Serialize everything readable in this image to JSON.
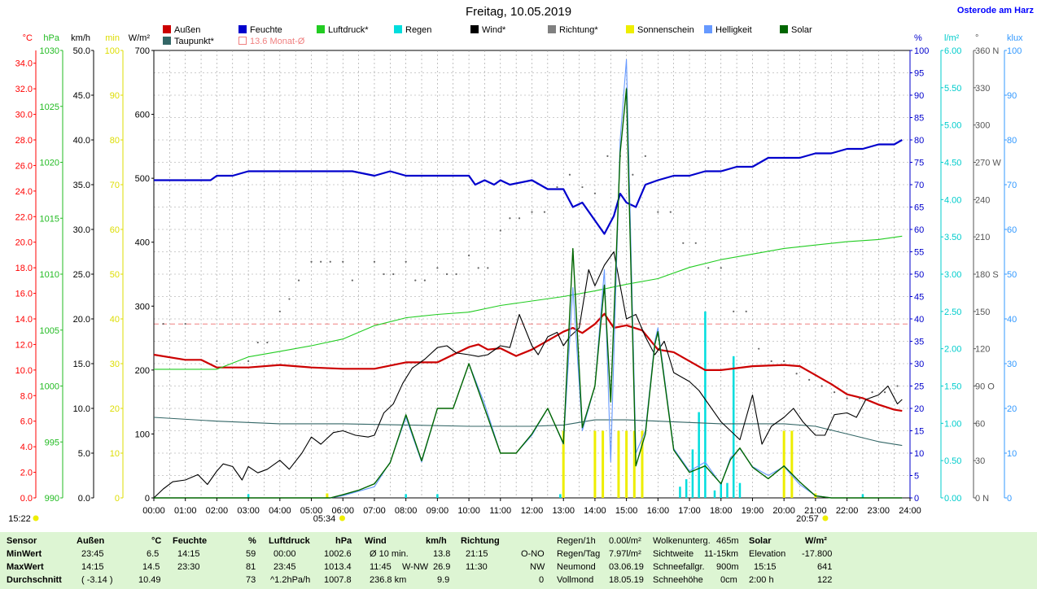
{
  "header": {
    "title": "Freitag, 10.05.2019",
    "site": "Osterode am Harz"
  },
  "legend": [
    {
      "label": "Außen",
      "color": "#cc0000"
    },
    {
      "label": "Feuchte",
      "color": "#0000cc"
    },
    {
      "label": "Luftdruck*",
      "color": "#22cc22"
    },
    {
      "label": "Regen",
      "color": "#00dddd"
    },
    {
      "label": "Wind*",
      "color": "#000000"
    },
    {
      "label": "Richtung*",
      "color": "#808080"
    },
    {
      "label": "Sonnenschein",
      "color": "#eeee00"
    },
    {
      "label": "Helligkeit",
      "color": "#6699ff"
    },
    {
      "label": "Solar",
      "color": "#006600"
    },
    {
      "label": "Taupunkt*",
      "color": "#336666"
    },
    {
      "label": "13.6 Monat-Ø",
      "color": "#f08080"
    }
  ],
  "axes": {
    "temp": {
      "unit": "°C",
      "color": "#ff0000",
      "ticks": [
        "0.0",
        "2.0",
        "4.0",
        "6.0",
        "8.0",
        "10.0",
        "12.0",
        "14.0",
        "16.0",
        "18.0",
        "20.0",
        "22.0",
        "24.0",
        "26.0",
        "28.0",
        "30.0",
        "32.0",
        "34.0"
      ]
    },
    "pressure": {
      "unit": "hPa",
      "color": "#22bb22",
      "ticks": [
        "990",
        "995",
        "1000",
        "1005",
        "1010",
        "1015",
        "1020",
        "1025",
        "1030"
      ]
    },
    "wind": {
      "unit": "km/h",
      "color": "#000000",
      "ticks": [
        "0.0",
        "5.0",
        "10.0",
        "15.0",
        "20.0",
        "25.0",
        "30.0",
        "35.0",
        "40.0",
        "45.0",
        "50.0"
      ]
    },
    "sunmin": {
      "unit": "min",
      "color": "#dddd00",
      "ticks": [
        "0",
        "10",
        "20",
        "30",
        "40",
        "50",
        "60",
        "70",
        "80",
        "90",
        "100"
      ]
    },
    "solar": {
      "unit": "W/m²",
      "color": "#000000",
      "ticks": [
        "0",
        "100",
        "200",
        "300",
        "400",
        "500",
        "600",
        "700"
      ]
    },
    "humidity": {
      "unit": "%",
      "color": "#0000cc",
      "ticks": [
        "0",
        "5",
        "10",
        "15",
        "20",
        "25",
        "30",
        "35",
        "40",
        "45",
        "50",
        "55",
        "60",
        "65",
        "70",
        "75",
        "80",
        "85",
        "90",
        "95",
        "100"
      ]
    },
    "rain": {
      "unit": "l/m²",
      "color": "#00cccc",
      "ticks": [
        "0.00",
        "0.50",
        "1.00",
        "1.50",
        "2.00",
        "2.50",
        "3.00",
        "3.50",
        "4.00",
        "4.50",
        "5.00",
        "5.50",
        "6.00"
      ]
    },
    "direction": {
      "unit": "°",
      "color": "#555555",
      "ticks": [
        "0 N",
        "30",
        "60",
        "90 O",
        "120",
        "150",
        "180 S",
        "210",
        "240",
        "270 W",
        "300",
        "330",
        "360 N"
      ]
    },
    "lux": {
      "unit": "klux",
      "color": "#3399ff",
      "ticks": [
        "0",
        "10",
        "20",
        "30",
        "40",
        "50",
        "60",
        "70",
        "80",
        "90",
        "100"
      ]
    },
    "time_ticks": [
      "00:00",
      "01:00",
      "02:00",
      "03:00",
      "04:00",
      "05:00",
      "06:00",
      "07:00",
      "08:00",
      "09:00",
      "10:00",
      "11:00",
      "12:00",
      "13:00",
      "14:00",
      "15:00",
      "16:00",
      "17:00",
      "18:00",
      "19:00",
      "20:00",
      "21:00",
      "22:00",
      "23:00",
      "24:00"
    ]
  },
  "sun_events": {
    "sunrise": "05:34",
    "sunset": "20:57",
    "left_time": "15:22"
  },
  "chart_data": {
    "type": "line",
    "xlim": [
      0,
      24
    ],
    "monthly_avg_temp": 13.6,
    "series": [
      {
        "name": "Außen",
        "axis": "temp",
        "color": "#cc0000",
        "x": [
          0,
          1,
          1.5,
          2,
          3,
          4,
          5,
          6,
          7,
          8,
          8.5,
          9,
          9.5,
          10,
          10.3,
          10.6,
          11,
          11.5,
          12,
          12.5,
          13,
          13.3,
          13.6,
          14,
          14.3,
          14.6,
          15,
          15.5,
          16,
          16.5,
          17,
          17.5,
          18,
          19,
          20,
          20.5,
          21,
          21.5,
          22,
          22.5,
          23,
          23.5,
          23.75
        ],
        "y": [
          11.2,
          10.8,
          10.8,
          10.2,
          10.2,
          10.4,
          10.2,
          10.1,
          10.1,
          10.6,
          10.6,
          10.6,
          11.2,
          11.8,
          12.0,
          11.6,
          11.7,
          11.1,
          11.6,
          12.3,
          13.0,
          13.3,
          12.9,
          13.6,
          14.4,
          13.3,
          13.5,
          13.1,
          11.6,
          11.4,
          10.7,
          10.0,
          10.0,
          10.3,
          10.4,
          10.3,
          9.6,
          8.9,
          8.1,
          7.8,
          7.3,
          6.9,
          6.8
        ]
      },
      {
        "name": "Taupunkt*",
        "axis": "temp",
        "color": "#336666",
        "x": [
          0,
          2,
          4,
          6,
          8,
          10,
          12,
          13,
          14,
          15,
          16,
          17,
          18,
          19,
          20,
          21,
          22,
          23,
          23.75
        ],
        "y": [
          6.3,
          6.0,
          5.8,
          5.8,
          5.7,
          5.6,
          5.6,
          5.7,
          6.1,
          6.1,
          6.0,
          5.9,
          5.8,
          5.8,
          5.8,
          5.6,
          5.0,
          4.4,
          4.1
        ]
      },
      {
        "name": "Feuchte",
        "axis": "humidity",
        "color": "#0000cc",
        "x": [
          0,
          1,
          1.8,
          2,
          2.5,
          3,
          4,
          5,
          6,
          6.3,
          7,
          7.5,
          8,
          9,
          10,
          10.2,
          10.5,
          10.8,
          11,
          11.3,
          12,
          12.5,
          13,
          13.3,
          13.6,
          14,
          14.3,
          14.6,
          14.8,
          15,
          15.3,
          15.6,
          16,
          16.5,
          17,
          17.5,
          18,
          18.5,
          19,
          19.5,
          20,
          20.5,
          21,
          21.5,
          22,
          22.5,
          23,
          23.5,
          23.75
        ],
        "y": [
          71,
          71,
          71,
          72,
          72,
          73,
          73,
          73,
          73,
          73,
          72,
          73,
          72,
          72,
          72,
          70,
          71,
          70,
          71,
          70,
          71,
          69,
          69,
          65,
          66,
          62,
          59,
          63,
          68,
          66,
          65,
          70,
          71,
          72,
          72,
          73,
          73,
          74,
          74,
          76,
          76,
          76,
          77,
          77,
          78,
          78,
          79,
          79,
          80
        ]
      },
      {
        "name": "Luftdruck*",
        "axis": "pressure",
        "color": "#22cc22",
        "x": [
          0,
          1,
          2,
          3,
          4,
          5,
          6,
          7,
          8,
          9,
          10,
          11,
          12,
          13,
          14,
          15,
          16,
          17,
          18,
          19,
          20,
          21,
          22,
          23,
          23.75
        ],
        "y": [
          1001.5,
          1001.5,
          1001.5,
          1002.6,
          1003.1,
          1003.6,
          1004.2,
          1005.4,
          1006.1,
          1006.4,
          1006.6,
          1007.2,
          1007.6,
          1008.0,
          1008.5,
          1009.1,
          1009.6,
          1010.6,
          1011.3,
          1011.8,
          1012.3,
          1012.6,
          1012.9,
          1013.1,
          1013.4
        ]
      },
      {
        "name": "Wind*",
        "axis": "wind",
        "color": "#000000",
        "x": [
          0,
          0.3,
          0.6,
          1,
          1.4,
          1.7,
          2,
          2.2,
          2.5,
          2.8,
          3,
          3.3,
          3.6,
          4,
          4.3,
          4.7,
          5,
          5.3,
          5.7,
          6,
          6.4,
          6.8,
          7,
          7.3,
          7.6,
          7.9,
          8.2,
          8.6,
          9,
          9.3,
          9.6,
          10,
          10.3,
          10.6,
          11,
          11.3,
          11.6,
          12,
          12.2,
          12.5,
          12.8,
          13,
          13.2,
          13.5,
          13.8,
          14,
          14.3,
          14.6,
          15,
          15.3,
          15.6,
          15.9,
          16.2,
          16.5,
          17,
          17.3,
          17.6,
          18,
          18.3,
          18.6,
          19,
          19.3,
          19.6,
          20,
          20.3,
          20.6,
          21,
          21.3,
          21.6,
          22,
          22.3,
          22.6,
          23,
          23.3,
          23.6,
          23.75
        ],
        "y": [
          0,
          1,
          1.8,
          2,
          2.6,
          1.5,
          3,
          3.8,
          3.5,
          2,
          3.5,
          2.8,
          3.2,
          4.2,
          3.2,
          5,
          6.8,
          6,
          7.3,
          7.5,
          7,
          6.8,
          7,
          9.5,
          10.5,
          12.8,
          14.5,
          15.5,
          16.8,
          17,
          16.2,
          16,
          15.8,
          16,
          17,
          16.8,
          20.5,
          17,
          16,
          18,
          18.5,
          17,
          18,
          19,
          25.5,
          23.7,
          26,
          27.5,
          20,
          20.5,
          18,
          16,
          17.5,
          14,
          13,
          12,
          10.5,
          8.5,
          7.5,
          6.5,
          11.5,
          6,
          8,
          9,
          10,
          8.5,
          7,
          7,
          9.3,
          9.5,
          9,
          11,
          11.5,
          12.5,
          10.5,
          11
        ]
      },
      {
        "name": "Richtung*",
        "axis": "direction",
        "color": "#666666",
        "style": "dots",
        "x": [
          0.3,
          1,
          2,
          3,
          3.3,
          3.6,
          4,
          4.3,
          4.6,
          5,
          5.3,
          5.6,
          6,
          6.3,
          7,
          7.3,
          7.6,
          8,
          8.3,
          8.6,
          9,
          9.3,
          9.6,
          10,
          10.3,
          10.6,
          11,
          11.3,
          11.6,
          12,
          12.4,
          12.8,
          13.2,
          13.6,
          14,
          14.4,
          14.8,
          15.2,
          15.6,
          16,
          16.4,
          16.8,
          17.2,
          17.6,
          18,
          18.4,
          18.8,
          19.2,
          19.6,
          20,
          20.4,
          20.8,
          21.2,
          21.6,
          22,
          22.4,
          22.8,
          23.2,
          23.6
        ],
        "y": [
          140,
          140,
          110,
          110,
          125,
          125,
          150,
          160,
          175,
          190,
          190,
          190,
          190,
          175,
          190,
          180,
          180,
          190,
          175,
          175,
          185,
          180,
          180,
          195,
          185,
          185,
          215,
          225,
          225,
          230,
          230,
          250,
          260,
          250,
          245,
          275,
          275,
          260,
          275,
          230,
          230,
          205,
          205,
          185,
          185,
          150,
          150,
          120,
          110,
          110,
          100,
          95,
          90,
          85,
          80,
          80,
          85,
          85,
          90
        ]
      },
      {
        "name": "Helligkeit",
        "axis": "lux",
        "color": "#6699ff",
        "x": [
          0,
          5.6,
          6,
          6.5,
          7,
          7.5,
          8,
          8.5,
          9,
          9.5,
          10,
          10.5,
          11,
          11.5,
          12,
          12.5,
          13,
          13.3,
          13.6,
          14,
          14.3,
          14.5,
          14.8,
          15,
          15.3,
          15.6,
          15.9,
          16,
          16.5,
          17,
          17.5,
          18,
          18.3,
          18.6,
          19,
          19.5,
          20,
          20.5,
          21,
          21.5,
          22,
          23.75
        ],
        "y": [
          0,
          0,
          0.5,
          1.5,
          2.5,
          8,
          18,
          8,
          20,
          20,
          30,
          21,
          10,
          10,
          14,
          20,
          12,
          47,
          15,
          25,
          51,
          8,
          80,
          98,
          10,
          15,
          35,
          38,
          11,
          6,
          8,
          3,
          9,
          11,
          7,
          5,
          7,
          3,
          0.5,
          0,
          0,
          0
        ]
      },
      {
        "name": "Solar",
        "axis": "solar",
        "color": "#006600",
        "x": [
          0,
          5.6,
          6,
          6.5,
          7,
          7.5,
          8,
          8.5,
          9,
          9.5,
          10,
          10.5,
          11,
          11.5,
          12,
          12.5,
          13,
          13.3,
          13.6,
          14,
          14.3,
          14.5,
          14.8,
          15,
          15.3,
          15.6,
          15.9,
          16,
          16.5,
          17,
          17.5,
          18,
          18.3,
          18.6,
          19,
          19.5,
          20,
          20.5,
          21,
          21.5,
          22,
          23.75
        ],
        "y": [
          0,
          0,
          5,
          12,
          22,
          55,
          130,
          58,
          140,
          140,
          210,
          140,
          70,
          70,
          100,
          140,
          85,
          390,
          110,
          175,
          333,
          150,
          540,
          640,
          50,
          100,
          240,
          260,
          75,
          40,
          50,
          22,
          60,
          78,
          48,
          30,
          50,
          25,
          3,
          0,
          0,
          0
        ]
      },
      {
        "name": "Regen",
        "axis": "rain",
        "color": "#00dddd",
        "style": "bars",
        "x": [
          3,
          8,
          9,
          12.9,
          15.25,
          15.5,
          16.7,
          16.9,
          17.1,
          17.3,
          17.5,
          17.8,
          18,
          18.2,
          18.4,
          18.6,
          22.5
        ],
        "y": [
          0.05,
          0.05,
          0.05,
          0.05,
          0.3,
          0.15,
          0.15,
          0.25,
          0.65,
          1.15,
          2.5,
          0.1,
          0.2,
          0.2,
          1.9,
          0.2,
          0.05
        ]
      },
      {
        "name": "Sonnenschein",
        "axis": "sunmin",
        "color": "#eeee00",
        "style": "bars",
        "x": [
          5.5,
          13,
          14,
          14.25,
          14.75,
          15,
          15.25,
          15.5,
          20,
          20.25,
          21
        ],
        "y": [
          1,
          15,
          15,
          15,
          15,
          15,
          15,
          15,
          15,
          15,
          1
        ]
      }
    ]
  },
  "footer": {
    "headers": {
      "sensor": "Sensor",
      "aussen": "Außen",
      "aussen_unit": "°C",
      "feuchte": "Feuchte",
      "feuchte_unit": "%",
      "luftdruck": "Luftdruck",
      "luftdruck_unit": "hPa",
      "wind": "Wind",
      "wind_unit": "km/h",
      "richtung": "Richtung",
      "solar": "Solar",
      "solar_unit": "W/m²"
    },
    "row_labels": [
      "MinWert",
      "MaxWert",
      "Durchschnitt"
    ],
    "aussen": [
      [
        "23:45",
        "6.5"
      ],
      [
        "14:15",
        "14.5"
      ],
      [
        "( -3.14 )",
        "10.49"
      ]
    ],
    "feuchte": [
      [
        "14:15",
        "59"
      ],
      [
        "23:30",
        "81"
      ],
      [
        "",
        "73"
      ]
    ],
    "luftdruck": [
      [
        "00:00",
        "1002.6"
      ],
      [
        "23:45",
        "1013.4"
      ],
      [
        "^1.2hPa/h",
        "1007.8"
      ]
    ],
    "wind": [
      [
        "Ø 10 min.",
        "",
        "13.8"
      ],
      [
        "11:45",
        "W-NW",
        "26.9"
      ],
      [
        "236.8 km",
        "",
        "9.9"
      ]
    ],
    "richtung": [
      [
        "21:15",
        "O-NO"
      ],
      [
        "11:30",
        "NW"
      ],
      [
        "",
        "0"
      ]
    ],
    "rain_info": [
      [
        "Regen/1h",
        "0.00l/m²"
      ],
      [
        "Regen/Tag",
        "7.97l/m²"
      ],
      [
        "Neumond",
        "03.06.19"
      ],
      [
        "Vollmond",
        "18.05.19"
      ]
    ],
    "cloud_info": [
      [
        "Wolkenunterg.",
        "465m"
      ],
      [
        "Sichtweite",
        "11-15km"
      ],
      [
        "Schneefallgr.",
        "900m"
      ],
      [
        "Schneehöhe",
        "0cm"
      ]
    ],
    "solar": [
      [
        "Elevation",
        "-17.800"
      ],
      [
        "15:15",
        "641"
      ],
      [
        "2:00 h",
        "122"
      ]
    ]
  }
}
